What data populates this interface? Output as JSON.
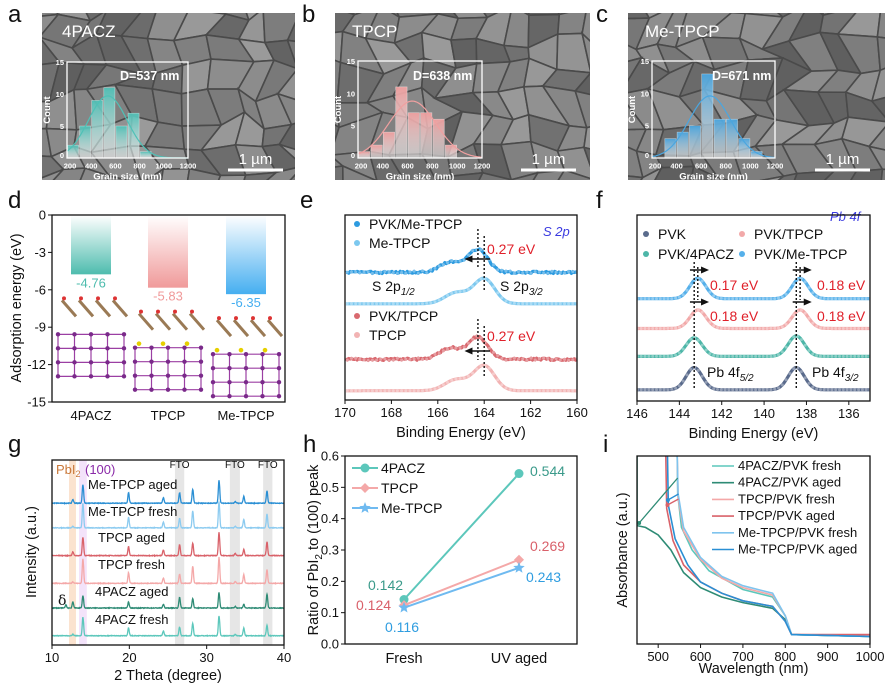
{
  "panel_labels": [
    "a",
    "b",
    "c",
    "d",
    "e",
    "f",
    "g",
    "h",
    "i"
  ],
  "chart_data": [
    {
      "panel": "a",
      "type": "bar",
      "title": "4PACZ",
      "annotation": "D=537 nm",
      "scalebar": "1 µm",
      "xlabel": "Grain size (nm)",
      "ylabel": "Count",
      "xlim": [
        200,
        1200
      ],
      "ylim": [
        0,
        15
      ],
      "xticks": [
        200,
        400,
        600,
        800,
        1000,
        1200
      ],
      "yticks": [
        0,
        5,
        10,
        15
      ],
      "bin_edges": [
        200,
        300,
        400,
        500,
        600,
        700,
        800,
        900
      ],
      "counts": [
        2,
        5,
        9,
        11,
        5,
        7,
        1
      ],
      "fit": {
        "mean": 537,
        "sigma": 160,
        "amplitude": 9.7
      },
      "color": "#4fc1b7"
    },
    {
      "panel": "b",
      "type": "bar",
      "title": "TPCP",
      "annotation": "D=638 nm",
      "scalebar": "1 µm",
      "xlabel": "Grain size (nm)",
      "ylabel": "Count",
      "xlim": [
        200,
        1200
      ],
      "ylim": [
        0,
        15
      ],
      "xticks": [
        200,
        400,
        600,
        800,
        1000,
        1200
      ],
      "yticks": [
        0,
        5,
        10,
        15
      ],
      "bin_edges": [
        200,
        300,
        400,
        500,
        600,
        700,
        800,
        900,
        1000
      ],
      "counts": [
        1,
        2,
        4,
        11,
        7,
        7,
        6,
        2
      ],
      "fit": {
        "mean": 638,
        "sigma": 190,
        "amplitude": 8.8
      },
      "color": "#f0a0a0"
    },
    {
      "panel": "c",
      "type": "bar",
      "title": "Me-TPCP",
      "annotation": "D=671 nm",
      "scalebar": "1 µm",
      "xlabel": "Grain size (nm)",
      "ylabel": "Count",
      "xlim": [
        200,
        1200
      ],
      "ylim": [
        0,
        15
      ],
      "xticks": [
        200,
        400,
        600,
        800,
        1000,
        1200
      ],
      "yticks": [
        0,
        5,
        10,
        15
      ],
      "bin_edges": [
        300,
        400,
        500,
        600,
        700,
        800,
        900,
        1000,
        1100
      ],
      "counts": [
        3,
        4,
        5,
        13,
        6,
        6,
        3,
        1
      ],
      "fit": {
        "mean": 671,
        "sigma": 170,
        "amplitude": 9.6
      },
      "color": "#4aa6e0"
    },
    {
      "panel": "d",
      "type": "bar",
      "ylabel": "Adsorption energy (eV)",
      "ylim": [
        -15,
        0
      ],
      "yticks": [
        0,
        -3,
        -6,
        -9,
        -12,
        -15
      ],
      "categories": [
        "4PACZ",
        "TPCP",
        "Me-TPCP"
      ],
      "values": [
        -4.76,
        -5.83,
        -6.35
      ],
      "value_labels": [
        "-4.76",
        "-5.83",
        "-6.35"
      ],
      "colors": [
        "#4dbcae",
        "#f09a9a",
        "#45aef0"
      ]
    },
    {
      "panel": "e",
      "type": "line",
      "xlabel": "Binding Energy (eV)",
      "xlim": [
        170,
        160
      ],
      "ylim": [
        0,
        10
      ],
      "xticks": [
        170,
        168,
        166,
        164,
        162,
        160
      ],
      "annotation": "S 2p",
      "series": [
        {
          "name": "PVK/Me-TPCP",
          "color": "#2d9be0",
          "baseline": 6.9,
          "noise": 0.12,
          "peaks": [
            [
              164.27,
              1.25,
              0.42
            ],
            [
              165.47,
              0.55,
              0.45
            ]
          ]
        },
        {
          "name": "Me-TPCP",
          "color": "#7cc8ef",
          "baseline": 5.2,
          "noise": 0,
          "peaks": [
            [
              164.0,
              1.35,
              0.45
            ],
            [
              165.2,
              0.6,
              0.5
            ]
          ]
        },
        {
          "name": "PVK/TPCP",
          "color": "#d9696f",
          "baseline": 2.2,
          "noise": 0.12,
          "peaks": [
            [
              164.27,
              1.2,
              0.42
            ],
            [
              165.47,
              0.6,
              0.45
            ]
          ]
        },
        {
          "name": "TPCP",
          "color": "#f2b3b3",
          "baseline": 0.5,
          "noise": 0,
          "peaks": [
            [
              164.0,
              1.35,
              0.45
            ],
            [
              165.2,
              0.6,
              0.5
            ]
          ]
        }
      ],
      "shift_labels": [
        "0.27 eV",
        "0.27 eV"
      ],
      "peak_labels": [
        {
          "main": "S 2p",
          "sub": "1/2"
        },
        {
          "main": "S 2p",
          "sub": "3/2"
        }
      ]
    },
    {
      "panel": "f",
      "type": "line",
      "xlabel": "Binding Energy (eV)",
      "xlim": [
        146,
        135
      ],
      "ylim": [
        0,
        10
      ],
      "xticks": [
        146,
        144,
        142,
        140,
        138,
        136
      ],
      "annotation": "Pb 4f",
      "series": [
        {
          "name": "PVK",
          "color": "#5a6b8c",
          "baseline": 0.6,
          "peaks": [
            [
              143.3,
              1.2,
              0.38
            ],
            [
              138.48,
              1.2,
              0.38
            ]
          ]
        },
        {
          "name": "PVK/4PACZ",
          "color": "#4db6a8",
          "baseline": 2.4,
          "peaks": [
            [
              143.3,
              1.0,
              0.38
            ],
            [
              138.48,
              1.1,
              0.38
            ]
          ]
        },
        {
          "name": "PVK/TPCP",
          "color": "#f2a9a9",
          "baseline": 3.9,
          "peaks": [
            [
              143.12,
              1.0,
              0.38
            ],
            [
              138.3,
              1.0,
              0.38
            ]
          ]
        },
        {
          "name": "PVK/Me-TPCP",
          "color": "#55b0ea",
          "baseline": 5.5,
          "peaks": [
            [
              143.13,
              1.1,
              0.38
            ],
            [
              138.3,
              1.1,
              0.38
            ]
          ]
        }
      ],
      "shift_labels": [
        "0.17 eV",
        "0.18 eV",
        "0.18 eV",
        "0.18 eV"
      ],
      "peak_labels": [
        {
          "main": "Pb 4f",
          "sub": "5/2"
        },
        {
          "main": "Pb 4f",
          "sub": "3/2"
        }
      ]
    },
    {
      "panel": "g",
      "type": "line",
      "xlabel": "2 Theta (degree)",
      "ylabel": "Intensity (a.u.)",
      "xlim": [
        10,
        40
      ],
      "ylim": [
        0,
        6
      ],
      "xticks": [
        10,
        20,
        30,
        40
      ],
      "peak_positions": [
        12.7,
        14.0,
        19.9,
        24.4,
        26.5,
        28.2,
        31.6,
        33.7,
        34.8,
        37.8
      ],
      "band_labels": {
        "pbi2": {
          "main": "PbI",
          "sub": "2"
        },
        "p100": "(100)",
        "fto": "FTO"
      },
      "bands": [
        {
          "range": [
            12.2,
            13.1
          ],
          "color": "#fbe3cf"
        },
        {
          "range": [
            13.5,
            14.5
          ],
          "color": "#f3e3fa"
        },
        {
          "range": [
            25.9,
            27.1
          ],
          "color": "#e6e6e6"
        },
        {
          "range": [
            33.0,
            34.3
          ],
          "color": "#e6e6e6"
        },
        {
          "range": [
            37.3,
            38.5
          ],
          "color": "#e6e6e6"
        }
      ],
      "series": [
        {
          "name": "Me-TPCP aged",
          "color": "#2a8fd4",
          "baseline": 4.6,
          "heights": [
            0.12,
            0.6,
            0.35,
            0.18,
            0.33,
            0.45,
            0.75,
            0.05,
            0.22,
            0.4
          ]
        },
        {
          "name": "Me-TPCP fresh",
          "color": "#8ccbf0",
          "baseline": 3.8,
          "heights": [
            0.05,
            0.8,
            0.35,
            0.18,
            0.3,
            0.55,
            0.85,
            0.05,
            0.28,
            0.45
          ]
        },
        {
          "name": "TPCP aged",
          "color": "#d9626a",
          "baseline": 2.9,
          "heights": [
            0.12,
            0.6,
            0.3,
            0.18,
            0.35,
            0.4,
            0.75,
            0.07,
            0.2,
            0.45
          ]
        },
        {
          "name": "TPCP fresh",
          "color": "#f4a8a8",
          "baseline": 2.0,
          "heights": [
            0.05,
            0.8,
            0.35,
            0.18,
            0.3,
            0.55,
            0.85,
            0.06,
            0.28,
            0.45
          ]
        },
        {
          "name": "4PACZ aged",
          "color": "#2e8b75",
          "baseline": 1.2,
          "heights": [
            0.2,
            0.4,
            0.2,
            0.12,
            0.35,
            0.3,
            0.5,
            0.05,
            0.12,
            0.45
          ],
          "delta": {
            "label": "δ",
            "position": 11.8,
            "height": 0.1
          }
        },
        {
          "name": "4PACZ fresh",
          "color": "#5cc7bb",
          "baseline": 0.3,
          "heights": [
            0.05,
            0.6,
            0.25,
            0.15,
            0.28,
            0.4,
            0.65,
            0.05,
            0.25,
            0.35
          ]
        }
      ]
    },
    {
      "panel": "h",
      "type": "line",
      "ylabel": {
        "a": "Ratio of PbI",
        "sub": "2",
        "b": " to (100) peak"
      },
      "ylim": [
        0,
        0.6
      ],
      "yticks": [
        0.0,
        0.1,
        0.2,
        0.3,
        0.4,
        0.5,
        0.6
      ],
      "categories": [
        "Fresh",
        "UV aged"
      ],
      "series": [
        {
          "name": "4PACZ",
          "color": "#5cc7bb",
          "label_color": "#3a9a8a",
          "marker": "circle",
          "values": [
            0.142,
            0.544
          ],
          "labels": [
            "0.142",
            "0.544"
          ]
        },
        {
          "name": "TPCP",
          "color": "#f4a8a8",
          "label_color": "#d9606a",
          "marker": "diamond",
          "values": [
            0.124,
            0.269
          ],
          "labels": [
            "0.124",
            "0.269"
          ]
        },
        {
          "name": "Me-TPCP",
          "color": "#6fbaf0",
          "label_color": "#2f9de0",
          "marker": "star",
          "values": [
            0.116,
            0.243
          ],
          "labels": [
            "0.116",
            "0.243"
          ]
        }
      ]
    },
    {
      "panel": "i",
      "type": "line",
      "xlabel": "Wavelength (nm)",
      "ylabel": "Absorbance (a.u.)",
      "xlim": [
        450,
        1000
      ],
      "ylim": [
        0,
        1
      ],
      "xticks": [
        500,
        600,
        700,
        800,
        900,
        1000
      ],
      "series": [
        {
          "name": "4PACZ/PVK fresh",
          "color": "#5cc7bb",
          "points": [
            [
              545,
              1
            ],
            [
              546,
              0.8
            ],
            [
              555,
              0.62
            ],
            [
              580,
              0.5
            ],
            [
              620,
              0.39
            ],
            [
              700,
              0.29
            ],
            [
              770,
              0.25
            ],
            [
              800,
              0.15
            ],
            [
              815,
              0.05
            ],
            [
              1000,
              0.04
            ]
          ]
        },
        {
          "name": "4PACZ/PVK aged",
          "color": "#2e8b75",
          "points": [
            [
              450,
              0.63
            ],
            [
              470,
              0.62
            ],
            [
              500,
              0.58
            ],
            [
              530,
              0.5
            ],
            [
              560,
              0.38
            ],
            [
              600,
              0.3
            ],
            [
              650,
              0.25
            ],
            [
              700,
              0.22
            ],
            [
              770,
              0.19
            ],
            [
              800,
              0.13
            ],
            [
              815,
              0.05
            ],
            [
              1000,
              0.04
            ]
          ]
        },
        {
          "name": "TPCP/PVK fresh",
          "color": "#f4a8a8",
          "points": [
            [
              545,
              1
            ],
            [
              547,
              0.78
            ],
            [
              560,
              0.6
            ],
            [
              600,
              0.45
            ],
            [
              650,
              0.35
            ],
            [
              700,
              0.3
            ],
            [
              770,
              0.26
            ],
            [
              800,
              0.15
            ],
            [
              815,
              0.05
            ],
            [
              1000,
              0.045
            ]
          ]
        },
        {
          "name": "TPCP/PVK aged",
          "color": "#d9626a",
          "points": [
            [
              518,
              1
            ],
            [
              520,
              0.72
            ],
            [
              535,
              0.55
            ],
            [
              560,
              0.42
            ],
            [
              600,
              0.33
            ],
            [
              650,
              0.27
            ],
            [
              700,
              0.23
            ],
            [
              770,
              0.2
            ],
            [
              800,
              0.12
            ],
            [
              815,
              0.05
            ],
            [
              900,
              0.05
            ],
            [
              1000,
              0.05
            ]
          ]
        },
        {
          "name": "Me-TPCP/PVK fresh",
          "color": "#7fc4ee",
          "points": [
            [
              545,
              1
            ],
            [
              547,
              0.8
            ],
            [
              560,
              0.62
            ],
            [
              600,
              0.46
            ],
            [
              650,
              0.36
            ],
            [
              700,
              0.31
            ],
            [
              770,
              0.27
            ],
            [
              800,
              0.15
            ],
            [
              815,
              0.05
            ],
            [
              1000,
              0.04
            ]
          ]
        },
        {
          "name": "Me-TPCP/PVK aged",
          "color": "#2a8fd4",
          "points": [
            [
              522,
              1
            ],
            [
              524,
              0.74
            ],
            [
              540,
              0.56
            ],
            [
              570,
              0.42
            ],
            [
              600,
              0.33
            ],
            [
              650,
              0.27
            ],
            [
              700,
              0.23
            ],
            [
              770,
              0.2
            ],
            [
              800,
              0.12
            ],
            [
              815,
              0.05
            ],
            [
              1000,
              0.04
            ]
          ]
        }
      ]
    }
  ]
}
